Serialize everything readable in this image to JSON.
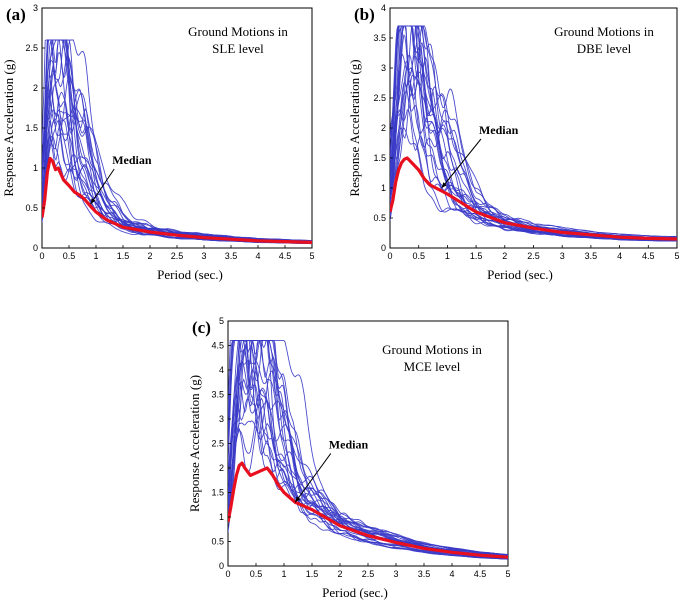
{
  "chart_data": [
    {
      "type": "line",
      "panel_label": "(a)",
      "title_lines": [
        "Ground Motions in",
        "SLE level"
      ],
      "xlabel": "Period (sec.)",
      "ylabel": "Response Acceleration  (g)",
      "xlim": [
        0,
        5
      ],
      "ylim": [
        0,
        3
      ],
      "xticks": [
        0,
        0.5,
        1,
        1.5,
        2,
        2.5,
        3,
        3.5,
        4,
        4.5,
        5
      ],
      "yticks": [
        0,
        0.5,
        1,
        1.5,
        2,
        2.5,
        3
      ],
      "xtick_labels": [
        "0",
        "0.5",
        "1",
        "1.5",
        "2",
        "2.5",
        "3",
        "3.5",
        "4",
        "4.5",
        "5"
      ],
      "ytick_labels": [
        "0",
        "0.5",
        "1",
        "1.5",
        "2",
        "2.5",
        "3"
      ],
      "grid": false,
      "peak_scale": 2.6,
      "record_count": 24,
      "annotation": {
        "text": "Median",
        "x": 1.3,
        "y": 1.05,
        "arrow_to": [
          0.9,
          0.55
        ]
      },
      "median": {
        "x": [
          0,
          0.05,
          0.1,
          0.15,
          0.2,
          0.25,
          0.3,
          0.4,
          0.5,
          0.6,
          0.7,
          0.8,
          0.9,
          1.0,
          1.2,
          1.5,
          2.0,
          2.5,
          3.0,
          3.5,
          4.0,
          4.5,
          5.0
        ],
        "y": [
          0.38,
          0.6,
          0.95,
          1.12,
          1.08,
          0.98,
          1.0,
          0.85,
          0.78,
          0.7,
          0.66,
          0.6,
          0.52,
          0.45,
          0.35,
          0.26,
          0.2,
          0.16,
          0.13,
          0.11,
          0.09,
          0.08,
          0.07
        ]
      }
    },
    {
      "type": "line",
      "panel_label": "(b)",
      "title_lines": [
        "Ground Motions in",
        "DBE level"
      ],
      "xlabel": "Period (sec.)",
      "ylabel": "Response Acceleration  (g)",
      "xlim": [
        0,
        5
      ],
      "ylim": [
        0,
        4
      ],
      "xticks": [
        0,
        0.5,
        1,
        1.5,
        2,
        2.5,
        3,
        3.5,
        4,
        4.5,
        5
      ],
      "yticks": [
        0,
        0.5,
        1,
        1.5,
        2,
        2.5,
        3,
        3.5,
        4
      ],
      "xtick_labels": [
        "0",
        "0.5",
        "1",
        "1.5",
        "2",
        "2.5",
        "3",
        "3.5",
        "4",
        "4.5",
        "5"
      ],
      "ytick_labels": [
        "0",
        "0.5",
        "1",
        "1.5",
        "2",
        "2.5",
        "3",
        "3.5",
        "4"
      ],
      "grid": false,
      "peak_scale": 3.7,
      "record_count": 24,
      "annotation": {
        "text": "Median",
        "x": 1.55,
        "y": 1.9,
        "arrow_to": [
          0.9,
          1.0
        ]
      },
      "median": {
        "x": [
          0,
          0.05,
          0.1,
          0.15,
          0.2,
          0.25,
          0.3,
          0.4,
          0.5,
          0.6,
          0.7,
          0.8,
          0.9,
          1.0,
          1.2,
          1.5,
          2.0,
          2.5,
          3.0,
          3.5,
          4.0,
          4.5,
          5.0
        ],
        "y": [
          0.6,
          0.8,
          1.1,
          1.3,
          1.42,
          1.48,
          1.5,
          1.4,
          1.3,
          1.15,
          1.05,
          1.0,
          0.95,
          0.9,
          0.78,
          0.6,
          0.42,
          0.33,
          0.26,
          0.22,
          0.18,
          0.16,
          0.15
        ]
      }
    },
    {
      "type": "line",
      "panel_label": "(c)",
      "title_lines": [
        "Ground Motions in",
        "MCE level"
      ],
      "xlabel": "Period (sec.)",
      "ylabel": "Response Acceleration  (g)",
      "xlim": [
        0,
        5
      ],
      "ylim": [
        0,
        5
      ],
      "xticks": [
        0,
        0.5,
        1,
        1.5,
        2,
        2.5,
        3,
        3.5,
        4,
        4.5,
        5
      ],
      "yticks": [
        0,
        0.5,
        1,
        1.5,
        2,
        2.5,
        3,
        3.5,
        4,
        4.5,
        5
      ],
      "xtick_labels": [
        "0",
        "0.5",
        "1",
        "1.5",
        "2",
        "2.5",
        "3",
        "3.5",
        "4",
        "4.5",
        "5"
      ],
      "ytick_labels": [
        "0",
        "0.5",
        "1",
        "1.5",
        "2",
        "2.5",
        "3",
        "3.5",
        "4",
        "4.5",
        "5"
      ],
      "grid": false,
      "peak_scale": 4.6,
      "record_count": 24,
      "annotation": {
        "text": "Median",
        "x": 1.8,
        "y": 2.4,
        "arrow_to": [
          1.2,
          1.3
        ]
      },
      "median": {
        "x": [
          0,
          0.05,
          0.1,
          0.15,
          0.2,
          0.25,
          0.3,
          0.4,
          0.5,
          0.6,
          0.7,
          0.8,
          0.9,
          1.0,
          1.2,
          1.5,
          2.0,
          2.5,
          3.0,
          3.5,
          4.0,
          4.5,
          5.0
        ],
        "y": [
          0.9,
          1.2,
          1.55,
          1.85,
          2.05,
          2.1,
          2.0,
          1.85,
          1.9,
          1.95,
          2.0,
          1.85,
          1.65,
          1.5,
          1.3,
          1.15,
          0.82,
          0.62,
          0.48,
          0.36,
          0.28,
          0.22,
          0.18
        ]
      }
    }
  ]
}
